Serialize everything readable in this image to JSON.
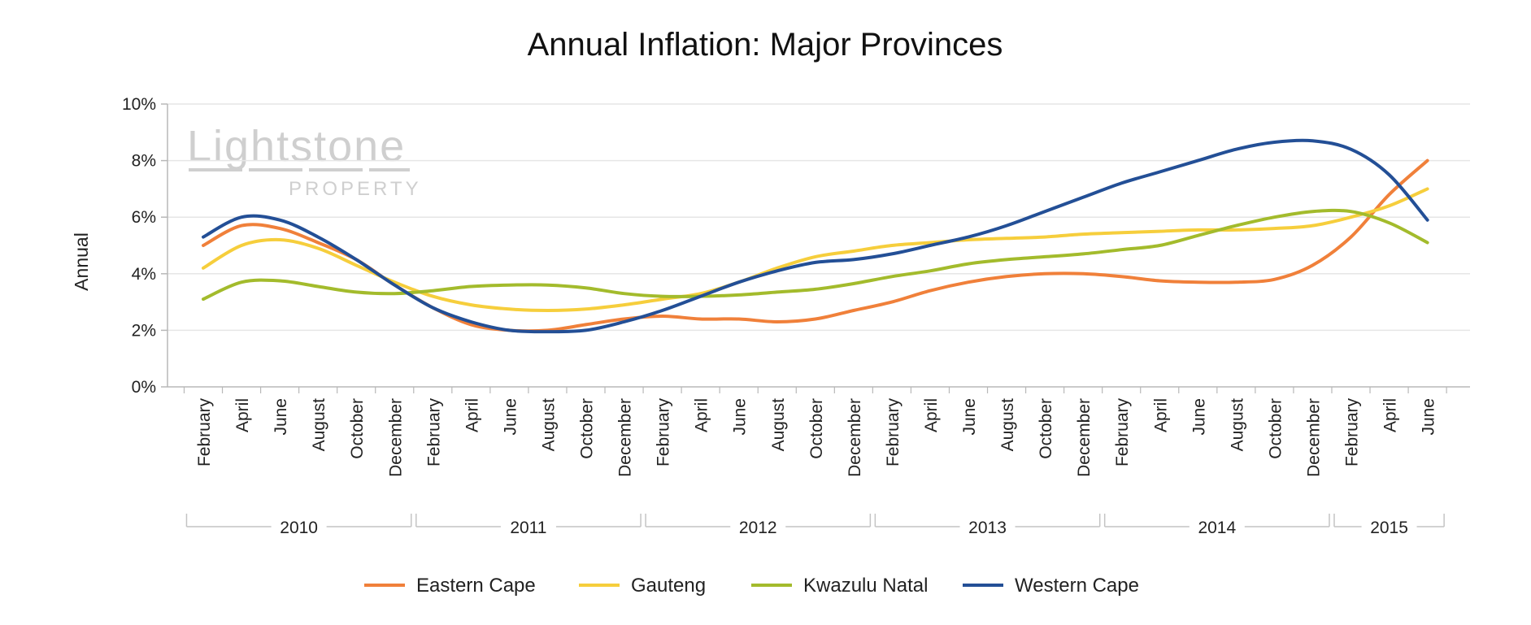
{
  "watermark": {
    "brand": "Lightstone",
    "sub": "PROPERTY"
  },
  "chart_data": {
    "type": "line",
    "title": "Annual Inflation: Major Provinces",
    "xlabel": "",
    "ylabel": "Annual",
    "ylim": [
      0,
      10
    ],
    "yticks": [
      "0%",
      "2%",
      "4%",
      "6%",
      "8%",
      "10%"
    ],
    "grid": true,
    "legend_position": "bottom",
    "categories": [
      "February",
      "April",
      "June",
      "August",
      "October",
      "December",
      "February",
      "April",
      "June",
      "August",
      "October",
      "December",
      "February",
      "April",
      "June",
      "August",
      "October",
      "December",
      "February",
      "April",
      "June",
      "August",
      "October",
      "December",
      "February",
      "April",
      "June",
      "August",
      "October",
      "December",
      "February",
      "April",
      "June"
    ],
    "year_groups": [
      {
        "label": "2010",
        "start": 0,
        "end": 5
      },
      {
        "label": "2011",
        "start": 6,
        "end": 11
      },
      {
        "label": "2012",
        "start": 12,
        "end": 17
      },
      {
        "label": "2013",
        "start": 18,
        "end": 23
      },
      {
        "label": "2014",
        "start": 24,
        "end": 29
      },
      {
        "label": "2015",
        "start": 30,
        "end": 32
      }
    ],
    "series": [
      {
        "name": "Eastern Cape",
        "color": "#f0803a",
        "values": [
          5.0,
          5.7,
          5.6,
          5.1,
          4.5,
          3.6,
          2.8,
          2.2,
          2.0,
          2.0,
          2.2,
          2.4,
          2.5,
          2.4,
          2.4,
          2.3,
          2.4,
          2.7,
          3.0,
          3.4,
          3.7,
          3.9,
          4.0,
          4.0,
          3.9,
          3.75,
          3.7,
          3.7,
          3.8,
          4.3,
          5.3,
          6.8,
          8.0
        ]
      },
      {
        "name": "Gauteng",
        "color": "#f6ce3c",
        "values": [
          4.2,
          5.0,
          5.2,
          4.9,
          4.3,
          3.7,
          3.2,
          2.9,
          2.75,
          2.7,
          2.75,
          2.9,
          3.1,
          3.3,
          3.7,
          4.2,
          4.6,
          4.8,
          5.0,
          5.1,
          5.2,
          5.25,
          5.3,
          5.4,
          5.45,
          5.5,
          5.55,
          5.55,
          5.6,
          5.7,
          6.0,
          6.4,
          7.0
        ]
      },
      {
        "name": "Kwazulu Natal",
        "color": "#a3bb2c",
        "values": [
          3.1,
          3.7,
          3.75,
          3.55,
          3.35,
          3.3,
          3.4,
          3.55,
          3.6,
          3.6,
          3.5,
          3.3,
          3.2,
          3.2,
          3.25,
          3.35,
          3.45,
          3.65,
          3.9,
          4.1,
          4.35,
          4.5,
          4.6,
          4.7,
          4.85,
          5.0,
          5.35,
          5.7,
          6.0,
          6.2,
          6.2,
          5.8,
          5.1
        ]
      },
      {
        "name": "Western Cape",
        "color": "#234f96",
        "values": [
          5.3,
          6.0,
          5.9,
          5.3,
          4.5,
          3.6,
          2.8,
          2.3,
          2.0,
          1.95,
          2.0,
          2.3,
          2.7,
          3.2,
          3.7,
          4.1,
          4.4,
          4.5,
          4.7,
          5.0,
          5.3,
          5.7,
          6.2,
          6.7,
          7.2,
          7.6,
          8.0,
          8.4,
          8.65,
          8.7,
          8.4,
          7.5,
          5.9
        ]
      }
    ]
  }
}
